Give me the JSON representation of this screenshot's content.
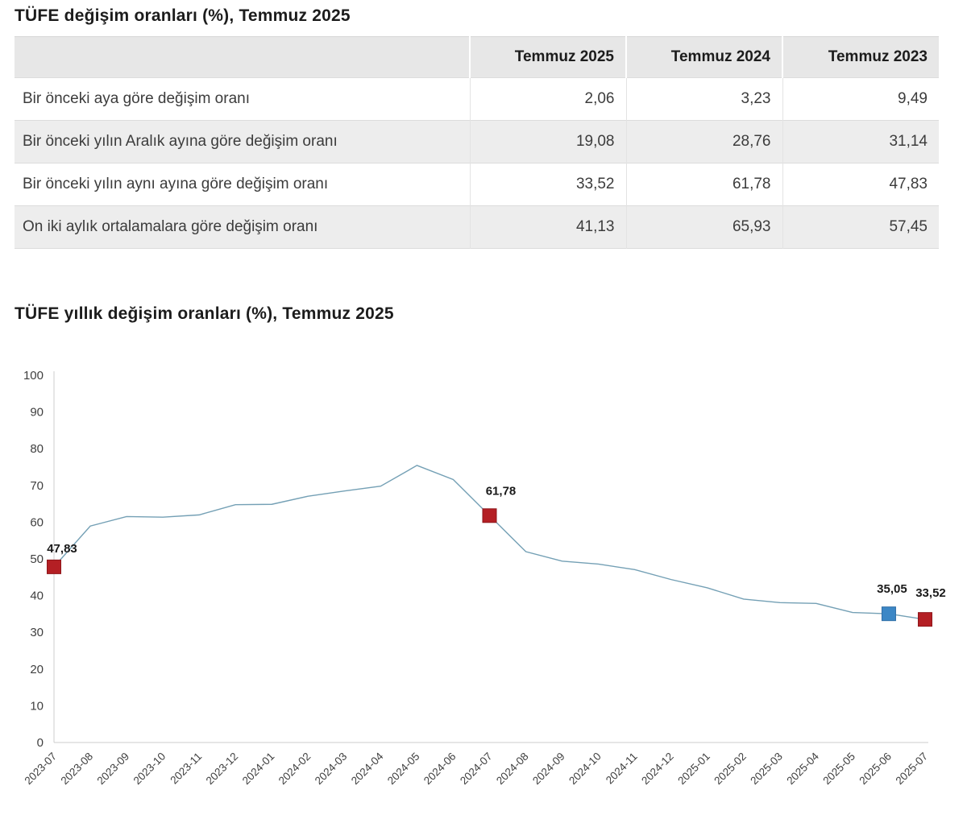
{
  "table_section": {
    "title": "TÜFE değişim oranları (%), Temmuz 2025",
    "table": {
      "columns": [
        "",
        "Temmuz 2025",
        "Temmuz 2024",
        "Temmuz 2023"
      ],
      "rows": [
        {
          "label": "Bir önceki aya göre değişim oranı",
          "values": [
            "2,06",
            "3,23",
            "9,49"
          ]
        },
        {
          "label": "Bir önceki yılın Aralık ayına göre değişim oranı",
          "values": [
            "19,08",
            "28,76",
            "31,14"
          ]
        },
        {
          "label": "Bir önceki yılın aynı ayına göre değişim oranı",
          "values": [
            "33,52",
            "61,78",
            "47,83"
          ]
        },
        {
          "label": "On iki aylık ortalamalara göre değişim oranı",
          "values": [
            "41,13",
            "65,93",
            "57,45"
          ]
        }
      ]
    }
  },
  "chart_section": {
    "title": "TÜFE yıllık değişim oranları (%), Temmuz 2025"
  },
  "chart_data": {
    "type": "line",
    "title": "TÜFE yıllık değişim oranları (%), Temmuz 2025",
    "x": [
      "2023-07",
      "2023-08",
      "2023-09",
      "2023-10",
      "2023-11",
      "2023-12",
      "2024-01",
      "2024-02",
      "2024-03",
      "2024-04",
      "2024-05",
      "2024-06",
      "2024-07",
      "2024-08",
      "2024-09",
      "2024-10",
      "2024-11",
      "2024-12",
      "2025-01",
      "2025-02",
      "2025-03",
      "2025-04",
      "2025-05",
      "2025-06",
      "2025-07"
    ],
    "values": [
      47.83,
      58.94,
      61.53,
      61.36,
      61.98,
      64.77,
      64.86,
      67.07,
      68.5,
      69.8,
      75.45,
      71.6,
      61.78,
      51.97,
      49.38,
      48.58,
      47.09,
      44.38,
      42.12,
      39.05,
      38.1,
      37.86,
      35.41,
      35.05,
      33.52
    ],
    "ylim": [
      0,
      100
    ],
    "y_tick_step": 10,
    "grid": false,
    "legend": "none",
    "line_color": "#74a0b5",
    "axis_color": "#cccccc",
    "tick_text_color": "#3f3f3f",
    "annotated_points": [
      {
        "x": "2023-07",
        "value": 47.83,
        "label": "47,83",
        "marker": "square",
        "color": "#b41f24",
        "stroke": "#8e161b"
      },
      {
        "x": "2024-07",
        "value": 61.78,
        "label": "61,78",
        "marker": "square",
        "color": "#b41f24",
        "stroke": "#8e161b"
      },
      {
        "x": "2025-06",
        "value": 35.05,
        "label": "35,05",
        "marker": "square",
        "color": "#3c87c6",
        "stroke": "#2f6ea6"
      },
      {
        "x": "2025-07",
        "value": 33.52,
        "label": "33,52",
        "marker": "square",
        "color": "#b41f24",
        "stroke": "#8e161b"
      }
    ]
  }
}
